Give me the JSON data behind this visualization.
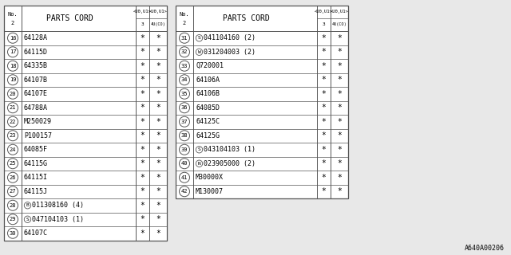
{
  "background_color": "#e8e8e8",
  "font_size": 6.0,
  "title_font_size": 7.0,
  "watermark": "A640A00206",
  "left_table": {
    "header": "PARTS CORD",
    "rows": [
      {
        "num": "16",
        "part": "64128A",
        "prefix": ""
      },
      {
        "num": "17",
        "part": "64115D",
        "prefix": ""
      },
      {
        "num": "18",
        "part": "64335B",
        "prefix": ""
      },
      {
        "num": "19",
        "part": "64107B",
        "prefix": ""
      },
      {
        "num": "20",
        "part": "64107E",
        "prefix": ""
      },
      {
        "num": "21",
        "part": "64788A",
        "prefix": ""
      },
      {
        "num": "22",
        "part": "M250029",
        "prefix": ""
      },
      {
        "num": "23",
        "part": "P100157",
        "prefix": ""
      },
      {
        "num": "24",
        "part": "64085F",
        "prefix": ""
      },
      {
        "num": "25",
        "part": "64115G",
        "prefix": ""
      },
      {
        "num": "26",
        "part": "64115I",
        "prefix": ""
      },
      {
        "num": "27",
        "part": "64115J",
        "prefix": ""
      },
      {
        "num": "28",
        "part": "011308160 (4)",
        "prefix": "B"
      },
      {
        "num": "29",
        "part": "047104103 (1)",
        "prefix": "S"
      },
      {
        "num": "30",
        "part": "64107C",
        "prefix": ""
      }
    ]
  },
  "right_table": {
    "header": "PARTS CORD",
    "rows": [
      {
        "num": "31",
        "part": "041104160 (2)",
        "prefix": "S"
      },
      {
        "num": "32",
        "part": "031204003 (2)",
        "prefix": "W"
      },
      {
        "num": "33",
        "part": "Q720001",
        "prefix": ""
      },
      {
        "num": "34",
        "part": "64106A",
        "prefix": ""
      },
      {
        "num": "35",
        "part": "64106B",
        "prefix": ""
      },
      {
        "num": "36",
        "part": "64085D",
        "prefix": ""
      },
      {
        "num": "37",
        "part": "64125C",
        "prefix": ""
      },
      {
        "num": "38",
        "part": "64125G",
        "prefix": ""
      },
      {
        "num": "39",
        "part": "043104103 (1)",
        "prefix": "S"
      },
      {
        "num": "40",
        "part": "023905000 (2)",
        "prefix": "N"
      },
      {
        "num": "41",
        "part": "M30000X",
        "prefix": ""
      },
      {
        "num": "42",
        "part": "M130007",
        "prefix": ""
      }
    ]
  }
}
